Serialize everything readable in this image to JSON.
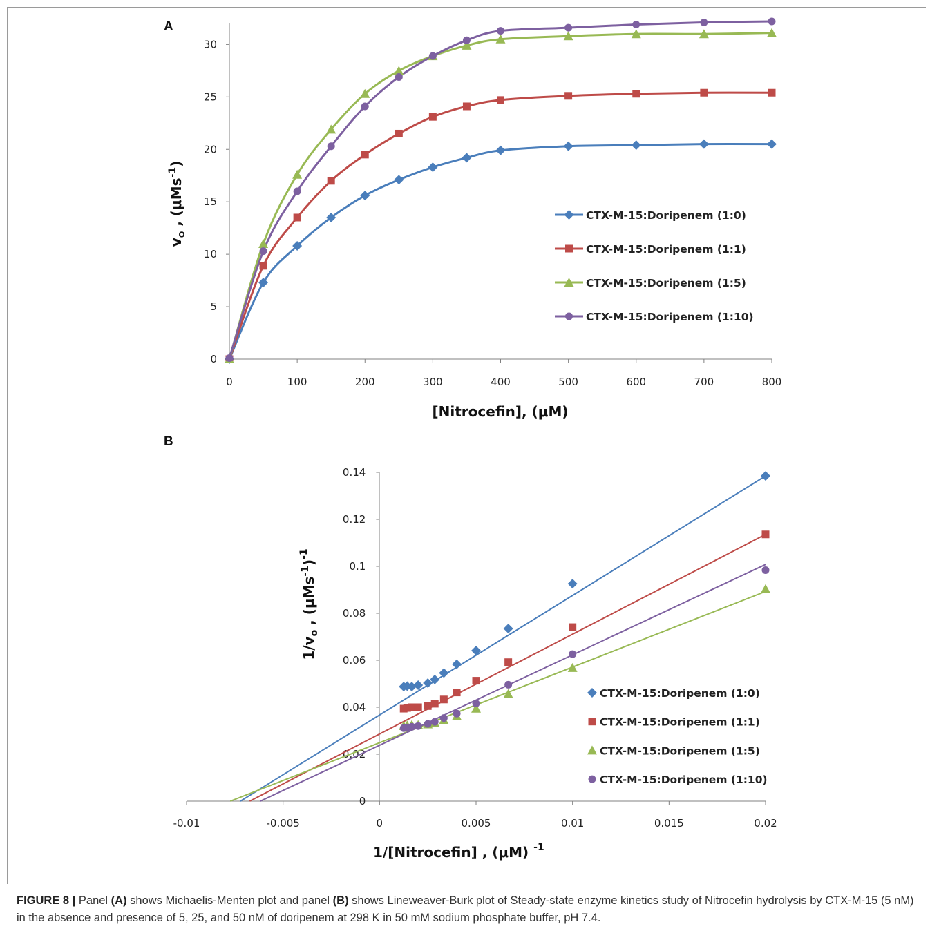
{
  "figure": {
    "panel_a_letter": "A",
    "panel_b_letter": "B",
    "caption": {
      "label": "FIGURE 8 |",
      "t1": " Panel ",
      "a": "(A)",
      "t2": " shows Michaelis-Menten plot and panel ",
      "b": "(B)",
      "t3": " shows Lineweaver-Burk plot of Steady-state enzyme kinetics study of Nitrocefin hydrolysis by CTX-M-15 (5 nM) in the absence and presence of 5, 25, and 50 nM of doripenem at 298 K in 50 mM sodium phosphate buffer, pH 7.4."
    }
  },
  "chart_data": [
    {
      "type": "line",
      "panel": "A",
      "xlabel": "[Nitrocefin], (μM)",
      "ylabel_main": "v",
      "ylabel_sub": "o",
      "ylabel_rest": " , (μMs",
      "ylabel_sup": "-1",
      "ylabel_end": ")",
      "xlim": [
        0,
        800
      ],
      "ylim": [
        0,
        32
      ],
      "xticks": [
        0,
        100,
        200,
        300,
        400,
        500,
        600,
        700,
        800
      ],
      "yticks": [
        0,
        5,
        10,
        15,
        20,
        25,
        30
      ],
      "grid": false,
      "legend_position": "right",
      "x": [
        0,
        50,
        100,
        150,
        200,
        250,
        300,
        350,
        400,
        500,
        600,
        700,
        800
      ],
      "series": [
        {
          "name": "CTX-M-15:Doripenem (1:0)",
          "color": "#4a7ebb",
          "marker": "diamond",
          "values": [
            0,
            7.3,
            10.8,
            13.5,
            15.6,
            17.1,
            18.3,
            19.2,
            19.9,
            20.3,
            20.4,
            20.5,
            20.5
          ]
        },
        {
          "name": "CTX-M-15:Doripenem (1:1)",
          "color": "#be4b48",
          "marker": "square",
          "values": [
            0,
            8.9,
            13.5,
            17.0,
            19.5,
            21.5,
            23.1,
            24.1,
            24.7,
            25.1,
            25.3,
            25.4,
            25.4
          ]
        },
        {
          "name": "CTX-M-15:Doripenem (1:5)",
          "color": "#98b954",
          "marker": "triangle",
          "values": [
            0,
            11.0,
            17.6,
            21.9,
            25.3,
            27.5,
            28.9,
            29.9,
            30.5,
            30.8,
            31.0,
            31.0,
            31.1
          ]
        },
        {
          "name": "CTX-M-15:Doripenem (1:10)",
          "color": "#7d60a0",
          "marker": "circle",
          "values": [
            0.1,
            10.3,
            16.0,
            20.3,
            24.1,
            26.9,
            28.9,
            30.4,
            31.3,
            31.6,
            31.9,
            32.1,
            32.2
          ]
        }
      ]
    },
    {
      "type": "scatter",
      "panel": "B",
      "xlabel_main": "1/[Nitrocefin] , (μM) ",
      "xlabel_sup": "-1",
      "ylabel_main": "1/v",
      "ylabel_sub": "o",
      "ylabel_rest": " , (μMs",
      "ylabel_sup1": "-1",
      "ylabel_mid": ")",
      "ylabel_sup2": "-1",
      "xlim": [
        -0.01,
        0.02
      ],
      "ylim": [
        0,
        0.14
      ],
      "xticks": [
        "-0.01",
        "-0.005",
        "0",
        "0.005",
        "0.01",
        "0.015",
        "0.02"
      ],
      "yticks": [
        "0",
        "0.02",
        "0.04",
        "0.06",
        "0.08",
        "0.1",
        "0.12",
        "0.14"
      ],
      "grid": false,
      "legend_position": "right",
      "x": [
        0.00125,
        0.00143,
        0.00167,
        0.002,
        0.0025,
        0.00286,
        0.00333,
        0.004,
        0.005,
        0.00667,
        0.01,
        0.02
      ],
      "series": [
        {
          "name": "CTX-M-15:Doripenem (1:0)",
          "color": "#4a7ebb",
          "marker": "diamond",
          "values": [
            0.0488,
            0.049,
            0.0488,
            0.0494,
            0.0503,
            0.0518,
            0.0546,
            0.0583,
            0.0641,
            0.0735,
            0.0926,
            0.1385
          ],
          "fit": {
            "slope": 5.09,
            "intercept": 0.0367
          }
        },
        {
          "name": "CTX-M-15:Doripenem (1:1)",
          "color": "#be4b48",
          "marker": "square",
          "values": [
            0.0394,
            0.0397,
            0.04,
            0.04,
            0.0405,
            0.0415,
            0.0433,
            0.0463,
            0.0513,
            0.0592,
            0.0741,
            0.1136
          ],
          "fit": {
            "slope": 4.25,
            "intercept": 0.0286
          }
        },
        {
          "name": "CTX-M-15:Doripenem (1:5)",
          "color": "#98b954",
          "marker": "triangle",
          "values": [
            0.0321,
            0.0323,
            0.0325,
            0.0325,
            0.0328,
            0.0334,
            0.0346,
            0.0363,
            0.0395,
            0.0457,
            0.0568,
            0.0904
          ],
          "fit": {
            "slope": 3.22,
            "intercept": 0.0249
          }
        },
        {
          "name": "CTX-M-15:Doripenem (1:10)",
          "color": "#7d60a0",
          "marker": "circle",
          "values": [
            0.0311,
            0.0314,
            0.0317,
            0.032,
            0.0329,
            0.0338,
            0.0354,
            0.0373,
            0.0416,
            0.0496,
            0.0626,
            0.0984
          ],
          "fit": {
            "slope": 3.85,
            "intercept": 0.0238
          }
        }
      ]
    }
  ]
}
